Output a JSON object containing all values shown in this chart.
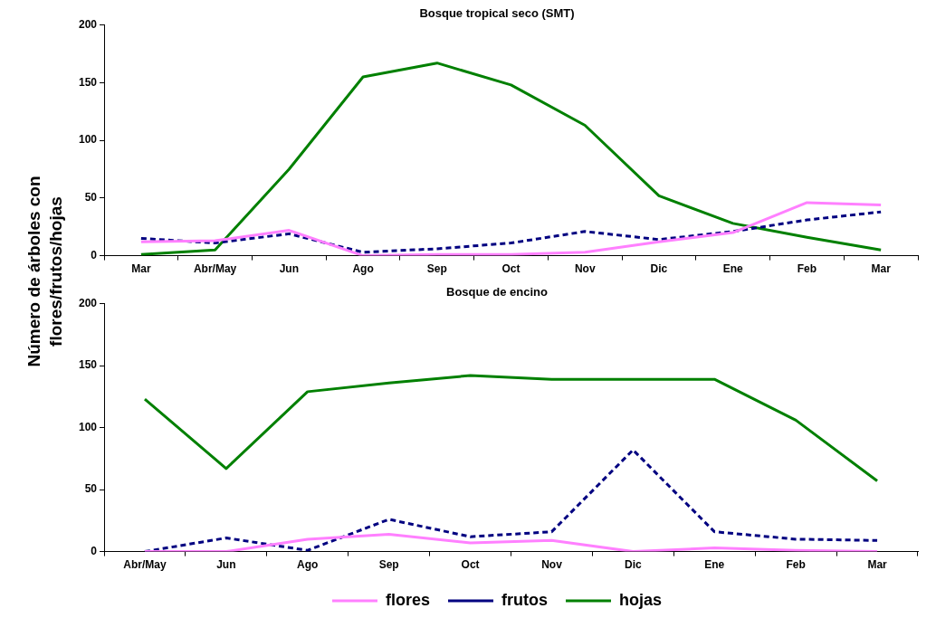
{
  "chart_data": [
    {
      "type": "line",
      "title": "Bosque tropical seco (SMT)",
      "ylabel": "Número de árboles con flores/frutos/hojas",
      "categories": [
        "Mar",
        "Abr/May",
        "Jun",
        "Ago",
        "Sep",
        "Oct",
        "Nov",
        "Dic",
        "Ene",
        "Feb",
        "Mar"
      ],
      "ylim": [
        0,
        200
      ],
      "yticks": [
        0,
        50,
        100,
        150,
        200
      ],
      "grid": false,
      "legend": false,
      "marker": "none",
      "series": [
        {
          "color": "#ff80ff",
          "line_style": "solid",
          "values": [
            12,
            13,
            22,
            0,
            1,
            1,
            3,
            12,
            20,
            46,
            44
          ]
        },
        {
          "color": "#000080",
          "line_style": "dashed",
          "values": [
            15,
            11,
            19,
            3,
            6,
            11,
            21,
            14,
            21,
            31,
            38
          ]
        },
        {
          "color": "#008000",
          "line_style": "solid",
          "values": [
            1,
            5,
            75,
            155,
            167,
            148,
            113,
            52,
            28,
            16,
            5
          ]
        }
      ]
    },
    {
      "type": "line",
      "title": "Bosque de encino",
      "categories": [
        "Abr/May",
        "Jun",
        "Ago",
        "Sep",
        "Oct",
        "Nov",
        "Dic",
        "Ene",
        "Feb",
        "Mar"
      ],
      "ylim": [
        0,
        200
      ],
      "yticks": [
        0,
        50,
        100,
        150,
        200
      ],
      "grid": false,
      "legend": "bottom",
      "marker": "none",
      "series": [
        {
          "name": "flores",
          "color": "#ff80ff",
          "line_style": "solid",
          "values": [
            0,
            0,
            10,
            14,
            7,
            9,
            0,
            3,
            1,
            0
          ]
        },
        {
          "name": "frutos",
          "color": "#000080",
          "line_style": "dashed",
          "values": [
            0,
            11,
            1,
            26,
            12,
            16,
            82,
            16,
            10,
            9
          ]
        },
        {
          "name": "hojas",
          "color": "#008000",
          "line_style": "solid",
          "values": [
            123,
            67,
            129,
            136,
            142,
            139,
            139,
            139,
            106,
            57
          ]
        }
      ]
    }
  ]
}
